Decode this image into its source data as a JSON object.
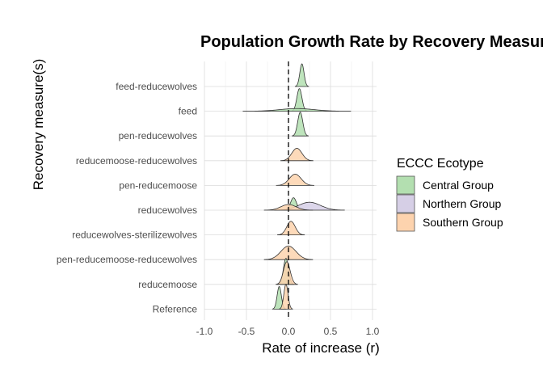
{
  "chart_data": {
    "type": "ridgeline",
    "title": "Population Growth Rate by Recovery Measure",
    "xlabel": "Rate of increase (r)",
    "ylabel": "Recovery measure(s)",
    "xlim": [
      -1.0,
      1.0
    ],
    "x_ticks": [
      "-1.0",
      "-0.5",
      "0.0",
      "0.5",
      "1.0"
    ],
    "reference_line_x": 0,
    "grid": true,
    "legend_position": "right",
    "categories": [
      "Reference",
      "reducemoose",
      "pen-reducemoose-reducewolves",
      "reducewolves-sterilizewolves",
      "reducewolves",
      "pen-reducemoose",
      "reducemoose-reducewolves",
      "pen-reducewolves",
      "feed",
      "feed-reducewolves"
    ],
    "legend": {
      "title": "ECCC Ecotype",
      "items": [
        {
          "name": "Central Group",
          "color": "#b3dfb0"
        },
        {
          "name": "Northern Group",
          "color": "#d6cfe6"
        },
        {
          "name": "Southern Group",
          "color": "#fdd3ae"
        }
      ]
    },
    "series": [
      {
        "name": "Central Group",
        "color": "#b3dfb0",
        "distributions": [
          {
            "category": "Reference",
            "mean": -0.11,
            "sd": 0.025,
            "peak": 1.0
          },
          {
            "category": "reducemoose",
            "mean": -0.03,
            "sd": 0.03,
            "peak": 1.15
          },
          {
            "category": "reducewolves",
            "mean": 0.06,
            "sd": 0.035,
            "peak": 0.55
          },
          {
            "category": "feed",
            "mean": 0.13,
            "sd": 0.03,
            "peak": 1.0
          },
          {
            "category": "feed",
            "mean": 0.1,
            "sd": 0.2,
            "peak": 0.12
          },
          {
            "category": "pen-reducewolves",
            "mean": 0.14,
            "sd": 0.03,
            "peak": 1.05
          },
          {
            "category": "feed-reducewolves",
            "mean": 0.16,
            "sd": 0.025,
            "peak": 1.0
          }
        ]
      },
      {
        "name": "Northern Group",
        "color": "#d6cfe6",
        "distributions": [
          {
            "category": "reducewolves",
            "mean": 0.25,
            "sd": 0.13,
            "peak": 0.35
          }
        ]
      },
      {
        "name": "Southern Group",
        "color": "#fdd3ae",
        "distributions": [
          {
            "category": "Reference",
            "mean": -0.03,
            "sd": 0.025,
            "peak": 1.1
          },
          {
            "category": "reducemoose",
            "mean": -0.02,
            "sd": 0.04,
            "peak": 1.0
          },
          {
            "category": "pen-reducemoose-reducewolves",
            "mean": 0.0,
            "sd": 0.09,
            "peak": 0.6
          },
          {
            "category": "reducewolves-sterilizewolves",
            "mean": 0.03,
            "sd": 0.05,
            "peak": 0.6
          },
          {
            "category": "reducewolves",
            "mean": 0.0,
            "sd": 0.09,
            "peak": 0.25
          },
          {
            "category": "pen-reducemoose",
            "mean": 0.08,
            "sd": 0.07,
            "peak": 0.5
          },
          {
            "category": "reducemoose-reducewolves",
            "mean": 0.1,
            "sd": 0.06,
            "peak": 0.55
          }
        ]
      }
    ]
  }
}
